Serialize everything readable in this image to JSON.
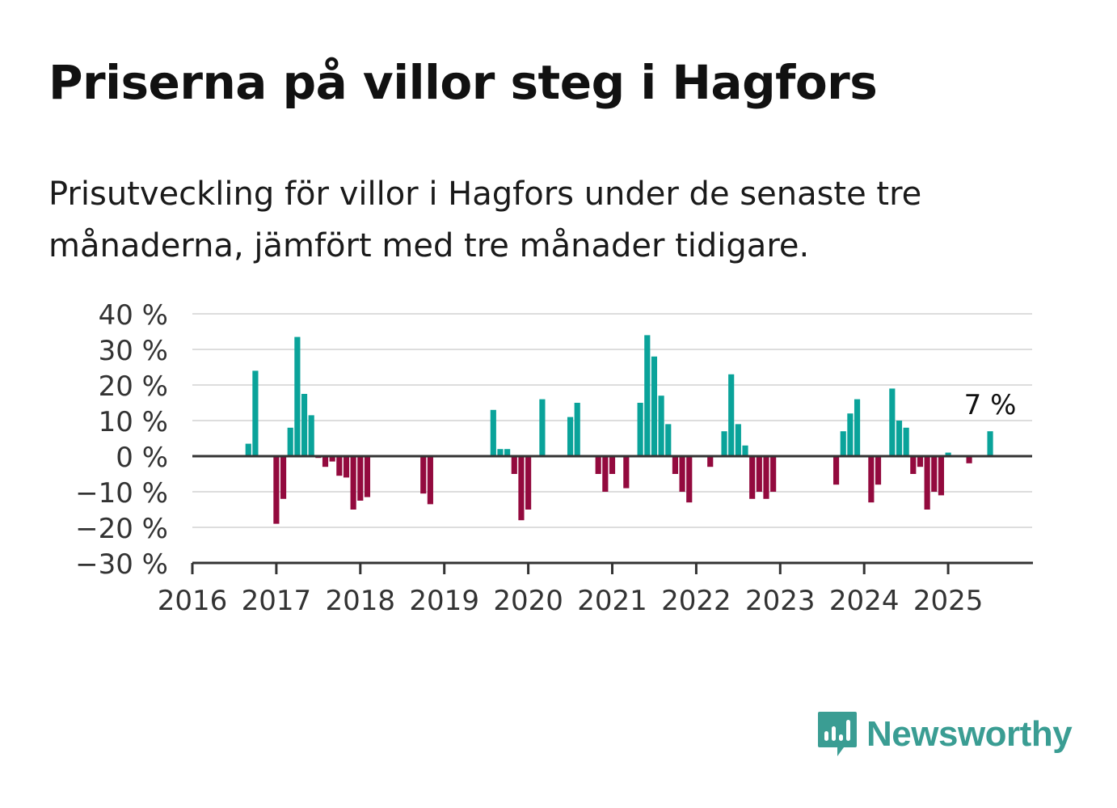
{
  "title": "Priserna på villor steg i Hagfors",
  "subtitle": "Prisutveckling för villor i Hagfors under de senaste tre månaderna, jämfört med tre månader tidigare.",
  "logo": {
    "text": "Newsworthy",
    "icon": "newsworthy-logo-icon",
    "color": "#3a9d93"
  },
  "colors": {
    "positive": "#0aa39a",
    "negative": "#930a3e",
    "grid": "#dddddd",
    "axis": "#333333"
  },
  "chart_data": {
    "type": "bar",
    "title": "Priserna på villor steg i Hagfors",
    "xlabel": "",
    "ylabel": "",
    "ylim": [
      -30,
      40
    ],
    "yticks": [
      40,
      30,
      20,
      10,
      0,
      -10,
      -20,
      -30
    ],
    "ytick_labels": [
      "40 %",
      "30 %",
      "20 %",
      "10 %",
      "0 %",
      "−10 %",
      "−20 %",
      "−30 %"
    ],
    "xlim": [
      "2016-01",
      "2025-12"
    ],
    "xtick_labels": [
      "2016",
      "2017",
      "2018",
      "2019",
      "2020",
      "2021",
      "2022",
      "2023",
      "2024",
      "2025"
    ],
    "grid": true,
    "annotation": {
      "text": "7 %",
      "x": "2025-07"
    },
    "data": [
      {
        "x": "2016-09",
        "y": 3.5
      },
      {
        "x": "2016-10",
        "y": 24
      },
      {
        "x": "2017-01",
        "y": -19
      },
      {
        "x": "2017-02",
        "y": -12
      },
      {
        "x": "2017-03",
        "y": 8
      },
      {
        "x": "2017-04",
        "y": 33.5
      },
      {
        "x": "2017-05",
        "y": 17.5
      },
      {
        "x": "2017-06",
        "y": 11.5
      },
      {
        "x": "2017-07",
        "y": -0.5
      },
      {
        "x": "2017-08",
        "y": -3
      },
      {
        "x": "2017-09",
        "y": -1.5
      },
      {
        "x": "2017-10",
        "y": -5.5
      },
      {
        "x": "2017-11",
        "y": -6
      },
      {
        "x": "2017-12",
        "y": -15
      },
      {
        "x": "2018-01",
        "y": -12.5
      },
      {
        "x": "2018-02",
        "y": -11.5
      },
      {
        "x": "2018-10",
        "y": -10.5
      },
      {
        "x": "2018-11",
        "y": -13.5
      },
      {
        "x": "2019-08",
        "y": 13
      },
      {
        "x": "2019-09",
        "y": 2
      },
      {
        "x": "2019-10",
        "y": 2
      },
      {
        "x": "2019-11",
        "y": -5
      },
      {
        "x": "2019-12",
        "y": -18
      },
      {
        "x": "2020-01",
        "y": -15
      },
      {
        "x": "2020-03",
        "y": 16
      },
      {
        "x": "2020-07",
        "y": 11
      },
      {
        "x": "2020-08",
        "y": 15
      },
      {
        "x": "2020-11",
        "y": -5
      },
      {
        "x": "2020-12",
        "y": -10
      },
      {
        "x": "2021-01",
        "y": -5
      },
      {
        "x": "2021-03",
        "y": -9
      },
      {
        "x": "2021-05",
        "y": 15
      },
      {
        "x": "2021-06",
        "y": 34
      },
      {
        "x": "2021-07",
        "y": 28
      },
      {
        "x": "2021-08",
        "y": 17
      },
      {
        "x": "2021-09",
        "y": 9
      },
      {
        "x": "2021-10",
        "y": -5
      },
      {
        "x": "2021-11",
        "y": -10
      },
      {
        "x": "2021-12",
        "y": -13
      },
      {
        "x": "2022-03",
        "y": -3
      },
      {
        "x": "2022-05",
        "y": 7
      },
      {
        "x": "2022-06",
        "y": 23
      },
      {
        "x": "2022-07",
        "y": 9
      },
      {
        "x": "2022-08",
        "y": 3
      },
      {
        "x": "2022-09",
        "y": -12
      },
      {
        "x": "2022-10",
        "y": -10
      },
      {
        "x": "2022-11",
        "y": -12
      },
      {
        "x": "2022-12",
        "y": -10
      },
      {
        "x": "2023-09",
        "y": -8
      },
      {
        "x": "2023-10",
        "y": 7
      },
      {
        "x": "2023-11",
        "y": 12
      },
      {
        "x": "2023-12",
        "y": 16
      },
      {
        "x": "2024-02",
        "y": -13
      },
      {
        "x": "2024-03",
        "y": -8
      },
      {
        "x": "2024-05",
        "y": 19
      },
      {
        "x": "2024-06",
        "y": 10
      },
      {
        "x": "2024-07",
        "y": 8
      },
      {
        "x": "2024-08",
        "y": -5
      },
      {
        "x": "2024-09",
        "y": -3
      },
      {
        "x": "2024-10",
        "y": -15
      },
      {
        "x": "2024-11",
        "y": -10
      },
      {
        "x": "2024-12",
        "y": -11
      },
      {
        "x": "2025-01",
        "y": 1
      },
      {
        "x": "2025-04",
        "y": -2
      },
      {
        "x": "2025-07",
        "y": 7
      }
    ]
  }
}
